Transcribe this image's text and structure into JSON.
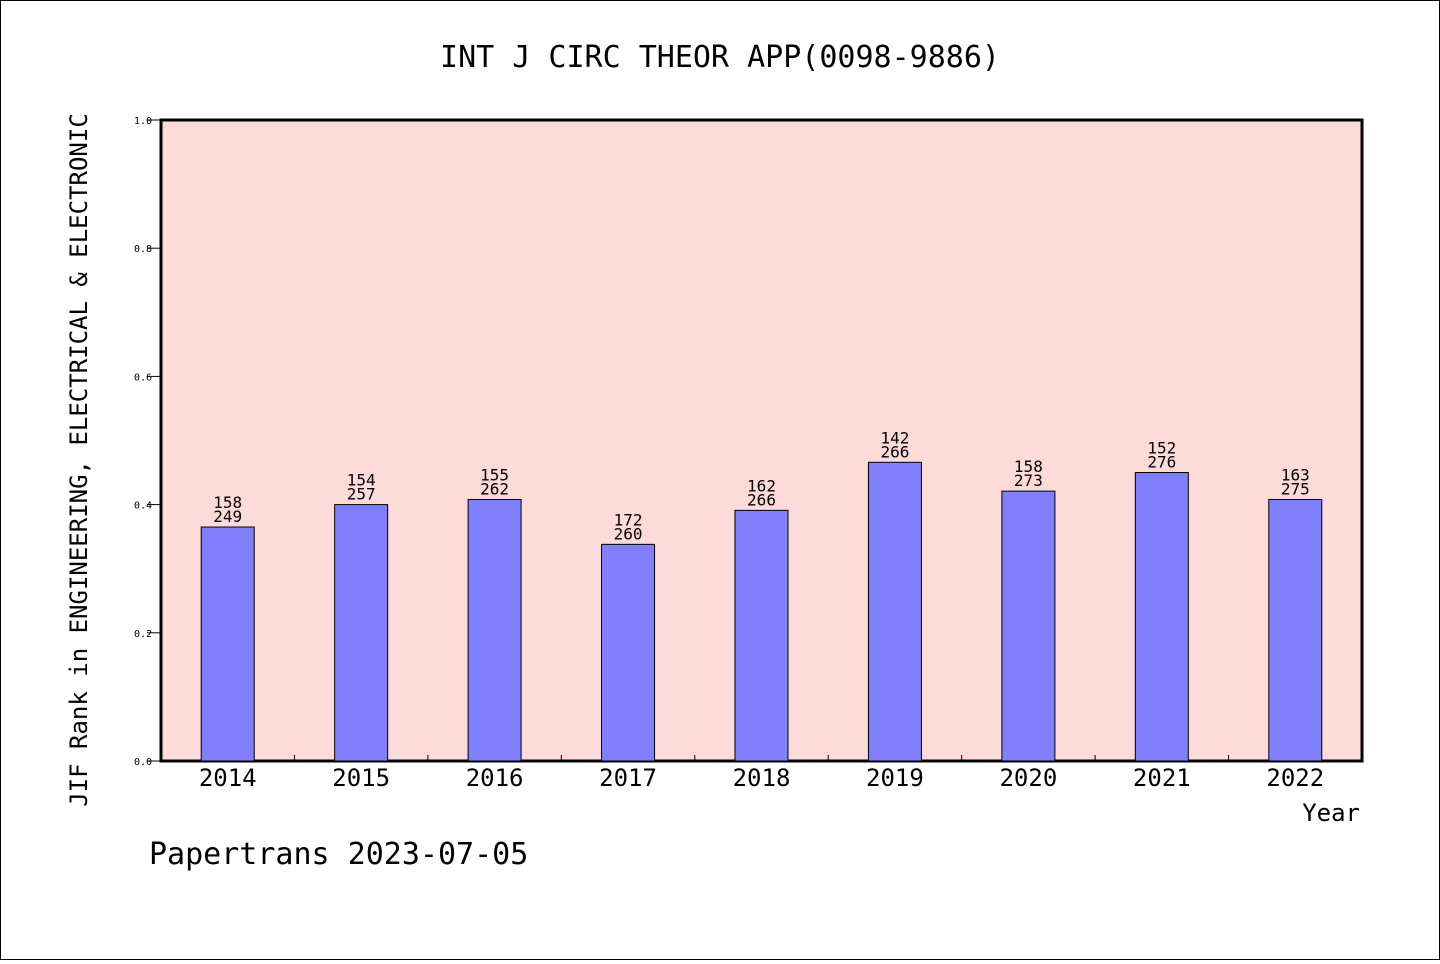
{
  "chart_data": {
    "type": "bar",
    "title": "INT J CIRC THEOR APP(0098-9886)",
    "xlabel": "Year",
    "ylabel": "JIF Rank in ENGINEERING, ELECTRICAL & ELECTRONIC",
    "ylim": [
      0.0,
      1.0
    ],
    "yticks": [
      "0.0",
      "0.2",
      "0.4",
      "0.6",
      "0.8",
      "1.0"
    ],
    "categories": [
      "2014",
      "2015",
      "2016",
      "2017",
      "2018",
      "2019",
      "2020",
      "2021",
      "2022"
    ],
    "values": [
      0.365,
      0.4,
      0.408,
      0.338,
      0.391,
      0.466,
      0.421,
      0.45,
      0.408
    ],
    "rank": [
      "158",
      "154",
      "155",
      "172",
      "162",
      "142",
      "158",
      "152",
      "163"
    ],
    "total": [
      "249",
      "257",
      "262",
      "260",
      "266",
      "266",
      "273",
      "276",
      "275"
    ],
    "grid": false,
    "legend": "none",
    "colors": {
      "plot_background": "#fddbd8",
      "bar_fill": "#8080ff",
      "bar_stroke": "#000000"
    }
  },
  "footer": {
    "credit": "Papertrans 2023-07-05"
  }
}
